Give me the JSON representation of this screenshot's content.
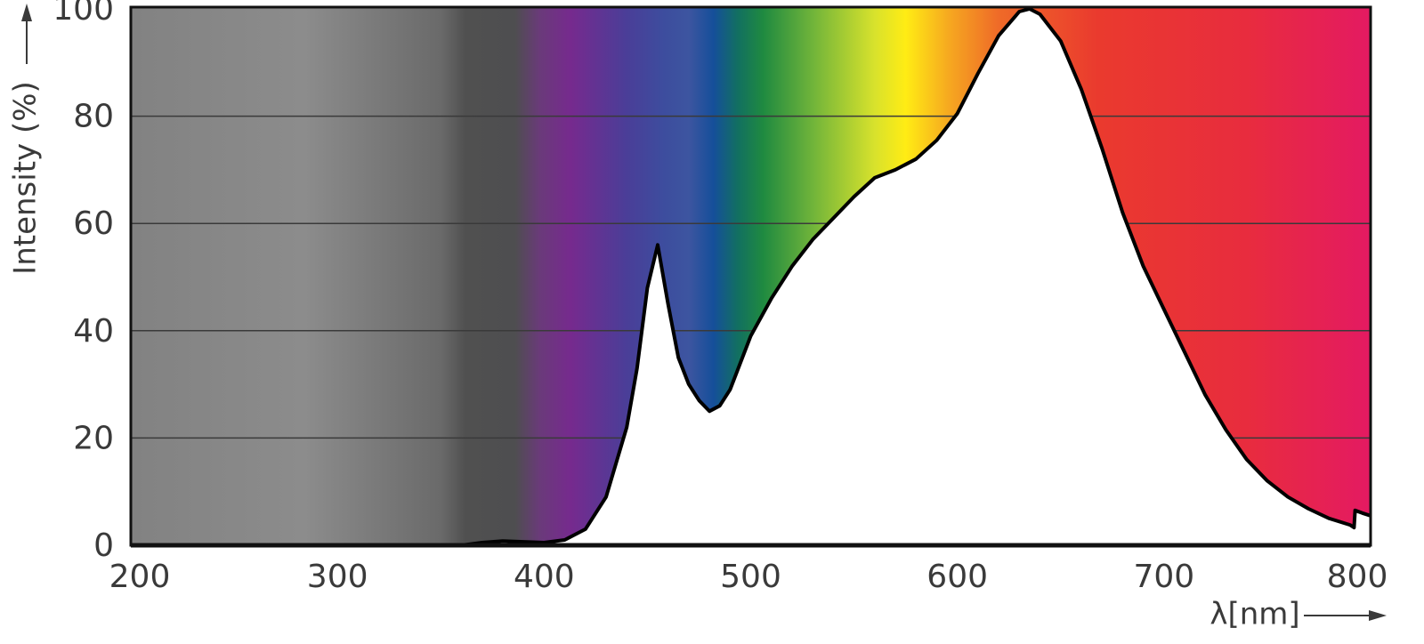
{
  "chart_data": {
    "type": "area",
    "x_label": "λ[nm]",
    "y_label": "Intensity (%)",
    "x": [
      200,
      360,
      370,
      380,
      400,
      410,
      420,
      430,
      440,
      445,
      450,
      455,
      460,
      465,
      470,
      475,
      480,
      485,
      490,
      500,
      510,
      520,
      530,
      540,
      550,
      560,
      570,
      580,
      590,
      600,
      610,
      620,
      630,
      635,
      640,
      650,
      660,
      670,
      680,
      690,
      700,
      710,
      720,
      730,
      740,
      750,
      760,
      770,
      780,
      790,
      792,
      792.5,
      796,
      800
    ],
    "values": [
      0,
      0,
      0.5,
      0.8,
      0.5,
      1,
      3,
      9,
      22,
      33,
      48,
      56,
      45,
      35,
      30,
      27,
      25,
      26,
      29,
      39,
      46,
      52,
      57,
      61,
      65,
      68.5,
      70,
      72,
      75.5,
      80.5,
      88,
      95,
      99.5,
      100,
      99,
      94,
      85,
      74,
      62,
      52,
      44,
      36,
      28,
      21.5,
      16,
      12,
      9,
      6.8,
      5,
      3.8,
      3.3,
      6.5,
      6,
      5.5
    ],
    "color": "#000000",
    "xlim": [
      200,
      800
    ],
    "xticks": [
      200,
      300,
      400,
      500,
      600,
      700,
      800
    ],
    "ylim": [
      0,
      100
    ],
    "yticks": [
      0,
      20,
      40,
      60,
      80,
      100
    ],
    "grid": true
  }
}
